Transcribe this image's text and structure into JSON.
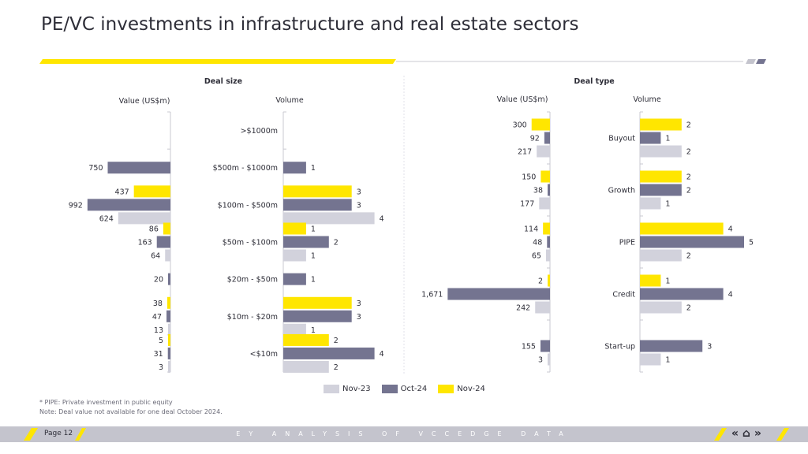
{
  "title": "PE/VC investments in infrastructure and real estate sectors",
  "colors": {
    "nov23": "#d2d2dc",
    "oct24": "#747490",
    "nov24": "#ffe600",
    "axis": "#c9c9d1",
    "text": "#2e2e38"
  },
  "legend": [
    {
      "label": "Nov-23",
      "color": "#d2d2dc"
    },
    {
      "label": "Oct-24",
      "color": "#747490"
    },
    {
      "label": "Nov-24",
      "color": "#ffe600"
    }
  ],
  "footnotes": [
    "* PIPE: Private investment in public equity",
    "Note: Deal value not available for one deal October 2024."
  ],
  "footer": {
    "page": "Page 12",
    "text": "EY ANALYSIS OF VCCEDGE DATA"
  },
  "chart_data": [
    {
      "type": "bar",
      "orientation": "horizontal",
      "panel": "Deal size",
      "title": "Value (US$m)",
      "categories": [
        ">$1000m",
        "$500m - $1000m",
        "$100m - $500m",
        "$50m - $100m",
        "$20m - $50m",
        "$10m - $20m",
        "<$10m"
      ],
      "series": [
        {
          "name": "Nov-24",
          "values": [
            null,
            null,
            437,
            86,
            null,
            38,
            5
          ],
          "labels": [
            "",
            "",
            "437",
            "86",
            "",
            "38",
            "5"
          ]
        },
        {
          "name": "Oct-24",
          "values": [
            null,
            750,
            992,
            163,
            20,
            47,
            31
          ],
          "labels": [
            "",
            "750",
            "992",
            "163",
            "20",
            "47",
            "31"
          ]
        },
        {
          "name": "Nov-23",
          "values": [
            null,
            null,
            624,
            64,
            null,
            13,
            3
          ],
          "labels": [
            "",
            "",
            "624",
            "64",
            "",
            "13",
            "3"
          ]
        }
      ],
      "direction": "leftward"
    },
    {
      "type": "bar",
      "orientation": "horizontal",
      "panel": "Deal size",
      "title": "Volume",
      "categories": [
        ">$1000m",
        "$500m - $1000m",
        "$100m - $500m",
        "$50m - $100m",
        "$20m - $50m",
        "$10m - $20m",
        "<$10m"
      ],
      "series": [
        {
          "name": "Nov-24",
          "values": [
            null,
            null,
            3,
            1,
            null,
            3,
            2
          ],
          "labels": [
            "",
            "",
            "3",
            "1",
            "",
            "3",
            "2"
          ]
        },
        {
          "name": "Oct-24",
          "values": [
            null,
            1,
            3,
            2,
            1,
            3,
            4
          ],
          "labels": [
            "",
            "1",
            "3",
            "2",
            "1",
            "3",
            "4"
          ]
        },
        {
          "name": "Nov-23",
          "values": [
            null,
            null,
            4,
            1,
            null,
            1,
            2
          ],
          "labels": [
            "",
            "",
            "4",
            "1",
            "",
            "1",
            "2"
          ]
        }
      ],
      "direction": "rightward"
    },
    {
      "type": "bar",
      "orientation": "horizontal",
      "panel": "Deal type",
      "title": "Value (US$m)",
      "categories": [
        "Buyout",
        "Growth",
        "PIPE",
        "Credit",
        "Start-up"
      ],
      "series": [
        {
          "name": "Nov-24",
          "values": [
            300,
            150,
            114,
            2,
            null
          ],
          "labels": [
            "300",
            "150",
            "114",
            "2",
            ""
          ]
        },
        {
          "name": "Oct-24",
          "values": [
            92,
            38,
            48,
            1671,
            155
          ],
          "labels": [
            "92",
            "38",
            "48",
            "1,671",
            "155"
          ]
        },
        {
          "name": "Nov-23",
          "values": [
            217,
            177,
            65,
            242,
            3
          ],
          "labels": [
            "217",
            "177",
            "65",
            "242",
            "3"
          ]
        }
      ],
      "direction": "leftward"
    },
    {
      "type": "bar",
      "orientation": "horizontal",
      "panel": "Deal type",
      "title": "Volume",
      "categories": [
        "Buyout",
        "Growth",
        "PIPE",
        "Credit",
        "Start-up"
      ],
      "series": [
        {
          "name": "Nov-24",
          "values": [
            2,
            2,
            4,
            1,
            null
          ],
          "labels": [
            "2",
            "2",
            "4",
            "1",
            ""
          ]
        },
        {
          "name": "Oct-24",
          "values": [
            1,
            2,
            5,
            4,
            3
          ],
          "labels": [
            "1",
            "2",
            "5",
            "4",
            "3"
          ]
        },
        {
          "name": "Nov-23",
          "values": [
            2,
            1,
            2,
            2,
            1
          ],
          "labels": [
            "2",
            "1",
            "2",
            "2",
            "1"
          ]
        }
      ],
      "direction": "rightward"
    }
  ]
}
